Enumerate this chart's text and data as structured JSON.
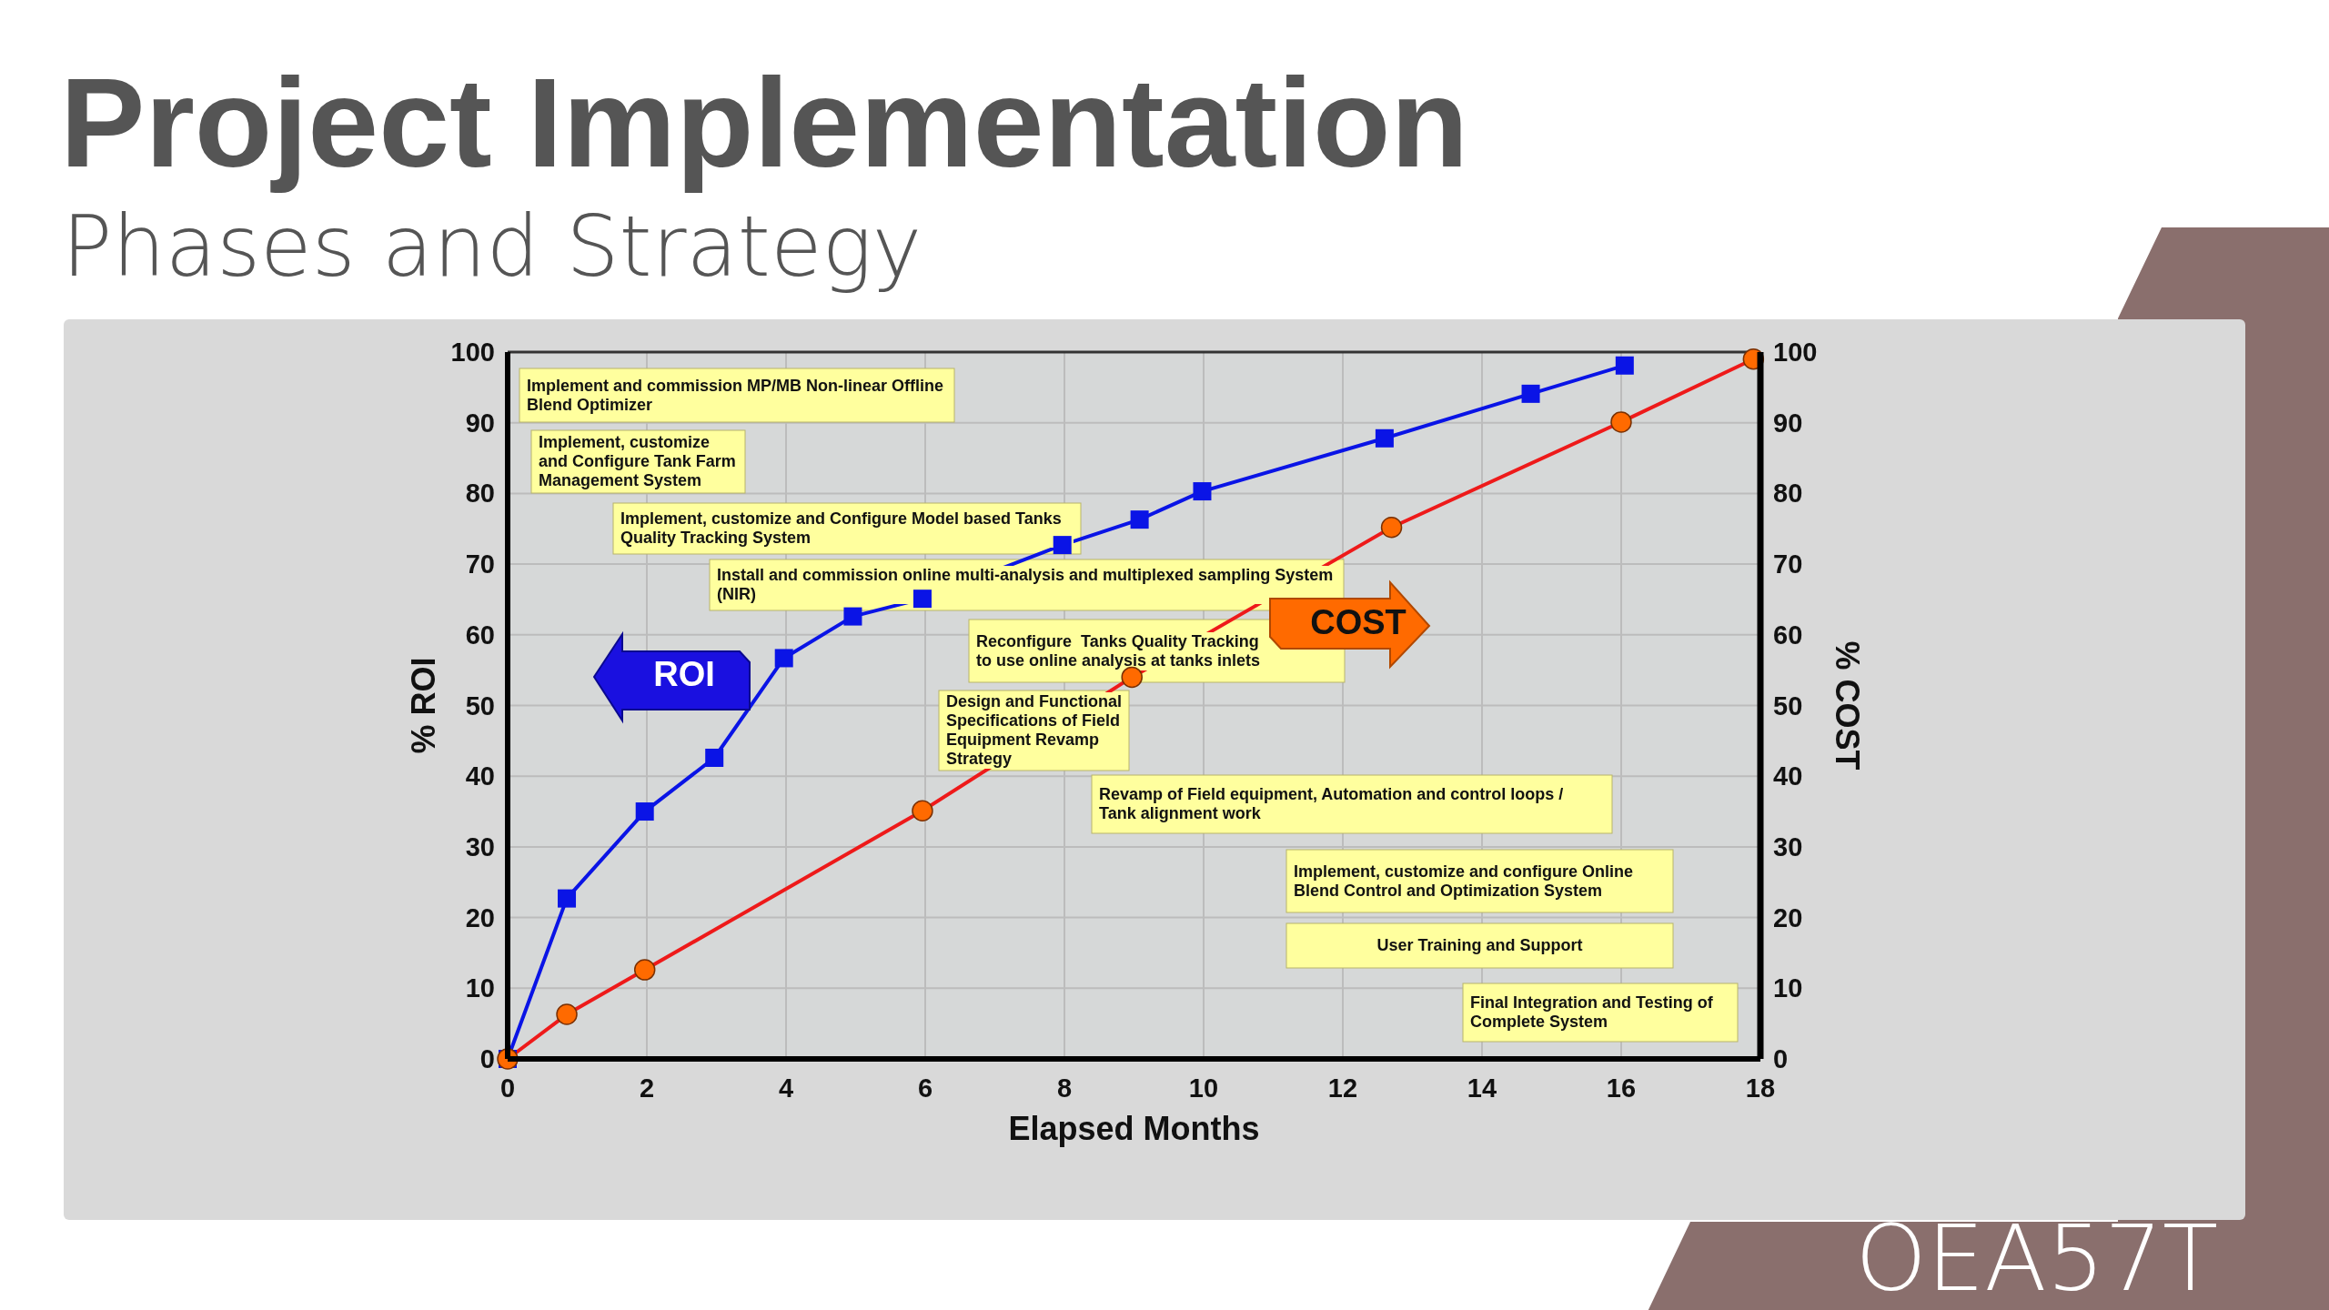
{
  "chart_data": {
    "type": "line",
    "title": "Project Implementation",
    "subtitle": "Phases and Strategy",
    "xlabel": "Elapsed Months",
    "ylabel": "% ROI",
    "y2label": "% COST",
    "xlim": [
      0,
      18
    ],
    "xticks": [
      0,
      2,
      4,
      6,
      8,
      10,
      12,
      14,
      16,
      18
    ],
    "ylim": [
      0,
      100
    ],
    "yticks": [
      0,
      10,
      20,
      30,
      40,
      50,
      60,
      70,
      80,
      90,
      100
    ],
    "y2lim": [
      0,
      100
    ],
    "y2ticks": [
      0,
      10,
      20,
      30,
      40,
      50,
      60,
      70,
      80,
      90,
      100
    ],
    "grid": true,
    "legend": false,
    "series": [
      {
        "name": "ROI",
        "color": "#0a14e6",
        "marker": "square",
        "x": [
          0,
          0.85,
          1.97,
          2.97,
          3.97,
          4.96,
          5.96,
          7.97,
          9.08,
          9.98,
          12.6,
          14.7,
          16.05
        ],
        "values": [
          0,
          22.7,
          35,
          42.6,
          56.7,
          62.6,
          65.1,
          72.7,
          76.3,
          80.3,
          87.8,
          94.1,
          98.1
        ]
      },
      {
        "name": "COST",
        "color": "#ee1a1a",
        "marker": "circle",
        "axis": "y2",
        "x": [
          0,
          0.85,
          1.97,
          5.96,
          8.97,
          12.7,
          16,
          17.9
        ],
        "values": [
          0,
          6.3,
          12.6,
          35.1,
          54,
          75.2,
          90.1,
          99
        ]
      }
    ],
    "annotations": [
      "Implement and commission MP/MB Non-linear Offline Blend Optimizer",
      "Implement, customize and Configure Tank Farm Management System",
      "Implement, customize and Configure Model based Tanks Quality Tracking System",
      "Install and commission online multi-analysis and multiplexed sampling System (NIR)",
      "Reconfigure  Tanks Quality Tracking to use online analysis at tanks inlets",
      "Design and Functional Specifications of Field Equipment Revamp Strategy",
      "Revamp of Field equipment, Automation and control loops / Tank alignment work",
      "Implement, customize and configure Online Blend Control and Optimization System",
      "User Training and Support",
      "Final Integration and Testing of Complete System",
      "OEA57T"
    ]
  }
}
